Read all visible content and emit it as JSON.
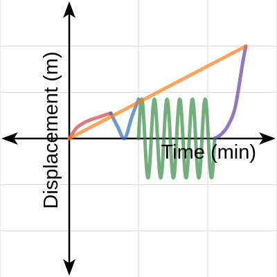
{
  "chart_data": {
    "type": "line",
    "xlabel": "Time (min)",
    "ylabel": "Displacement (m)",
    "xlim": [
      -1,
      3
    ],
    "ylim": [
      -3,
      3
    ],
    "grid": true,
    "tick_labels": false,
    "grid_x": [
      -1,
      0,
      1,
      2,
      3
    ],
    "grid_y": [
      -2,
      -1,
      0,
      1,
      2
    ],
    "series": [
      {
        "color": "#c74440",
        "x": [
          0,
          0.1,
          0.2,
          0.3,
          0.4,
          0.5,
          0.6
        ],
        "y": [
          0,
          0.22,
          0.33,
          0.4,
          0.45,
          0.5,
          0.55
        ]
      },
      {
        "color": "#2d70b3",
        "x": [
          0.6,
          0.7,
          0.8,
          0.9,
          1.0
        ],
        "y": [
          0.55,
          0.25,
          0.0,
          0.45,
          0.85
        ]
      },
      {
        "color": "#388c46",
        "x_start": 1.0,
        "x_end": 2.1,
        "cycles": 6,
        "amplitude": 0.85,
        "offset": 0
      },
      {
        "color": "#6042a6",
        "x": [
          2.1,
          2.2,
          2.3,
          2.4,
          2.5,
          2.55
        ],
        "y": [
          0,
          0.1,
          0.3,
          0.7,
          1.6,
          2.0
        ]
      },
      {
        "color": "#fa7e19",
        "x": [
          0,
          2.55
        ],
        "y": [
          0,
          2.0
        ]
      }
    ]
  }
}
